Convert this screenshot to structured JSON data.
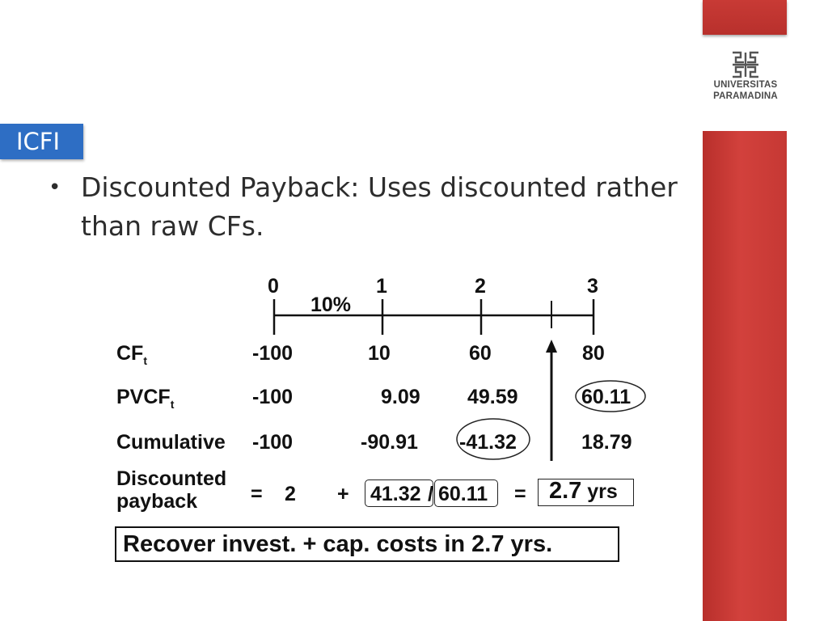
{
  "tag": "ICFI",
  "bullet": "Discounted Payback: Uses discounted rather than raw CFs.",
  "logo": {
    "line1": "UNIVERSITAS",
    "line2": "PARAMADINA",
    "icon": "paramadina-logo-icon"
  },
  "timeline": {
    "periods": [
      "0",
      "1",
      "2",
      "3"
    ],
    "rate": "10%"
  },
  "rows": {
    "cf": {
      "label": "CF",
      "sub": "t",
      "values": [
        "-100",
        "10",
        "60",
        "80"
      ]
    },
    "pvcf": {
      "label": "PVCF",
      "sub": "t",
      "values": [
        "-100",
        "9.09",
        "49.59",
        "60.11"
      ]
    },
    "cum": {
      "label": "Cumulative",
      "values": [
        "-100",
        "-90.91",
        "-41.32",
        "18.79"
      ]
    }
  },
  "payback": {
    "label_line1": "Discounted",
    "label_line2": "payback",
    "eq1": "=",
    "years": "2",
    "plus": "+",
    "numerator": "41.32",
    "slash": "/",
    "denominator": "60.11",
    "eq2": "=",
    "result": "2.7",
    "unit": "yrs"
  },
  "conclusion": "Recover invest. + cap. costs in 2.7 yrs.",
  "colors": {
    "accent": "#2e6ec4",
    "bar": "#c63834"
  }
}
